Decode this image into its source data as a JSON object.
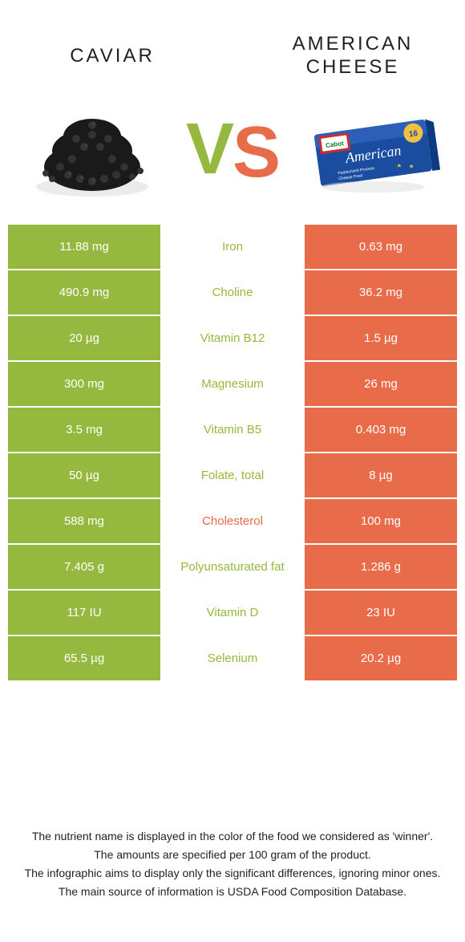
{
  "colors": {
    "left_bg": "#95b83e",
    "right_bg": "#e86b4a",
    "vs_left": "#95b83e",
    "vs_right": "#e86b4a",
    "text_dark": "#222222",
    "white": "#ffffff"
  },
  "header": {
    "left_title": "CAVIAR",
    "right_title_line1": "AMERICAN",
    "right_title_line2": "CHEESE"
  },
  "vs": {
    "v": "V",
    "s": "S"
  },
  "rows": [
    {
      "left": "11.88 mg",
      "mid": "Iron",
      "right": "0.63 mg",
      "winner": "left"
    },
    {
      "left": "490.9 mg",
      "mid": "Choline",
      "right": "36.2 mg",
      "winner": "left"
    },
    {
      "left": "20 µg",
      "mid": "Vitamin B12",
      "right": "1.5 µg",
      "winner": "left"
    },
    {
      "left": "300 mg",
      "mid": "Magnesium",
      "right": "26 mg",
      "winner": "left"
    },
    {
      "left": "3.5 mg",
      "mid": "Vitamin B5",
      "right": "0.403 mg",
      "winner": "left"
    },
    {
      "left": "50 µg",
      "mid": "Folate, total",
      "right": "8 µg",
      "winner": "left"
    },
    {
      "left": "588 mg",
      "mid": "Cholesterol",
      "right": "100 mg",
      "winner": "right"
    },
    {
      "left": "7.405 g",
      "mid": "Polyunsaturated fat",
      "right": "1.286 g",
      "winner": "left"
    },
    {
      "left": "117 IU",
      "mid": "Vitamin D",
      "right": "23 IU",
      "winner": "left"
    },
    {
      "left": "65.5 µg",
      "mid": "Selenium",
      "right": "20.2 µg",
      "winner": "left"
    }
  ],
  "footer": {
    "l1": "The nutrient name is displayed in the color of the food we considered as 'winner'.",
    "l2": "The amounts are specified per 100 gram of the product.",
    "l3": "The infographic aims to display only the significant differences, ignoring minor ones.",
    "l4": "The main source of information is USDA Food Composition Database."
  }
}
